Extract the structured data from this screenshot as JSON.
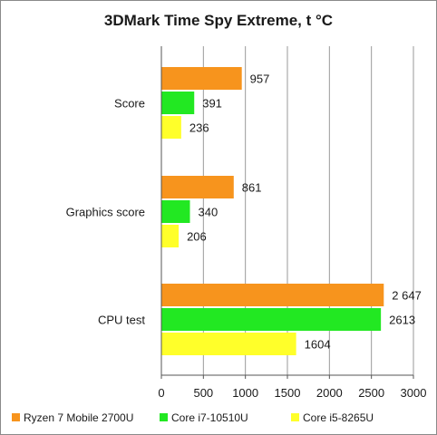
{
  "chart_data": {
    "type": "bar",
    "orientation": "horizontal",
    "title": "3DMark Time Spy Extreme, t °C",
    "categories": [
      "Score",
      "Graphics score",
      "CPU test"
    ],
    "series": [
      {
        "name": "Ryzen 7 Mobile 2700U",
        "color": "#f7941d",
        "values": [
          957,
          861,
          2647
        ],
        "labels": [
          "957",
          "861",
          "2 647"
        ]
      },
      {
        "name": "Core i7-10510U",
        "color": "#22e822",
        "values": [
          391,
          340,
          2613
        ],
        "labels": [
          "391",
          "340",
          "2613"
        ]
      },
      {
        "name": "Core i5-8265U",
        "color": "#ffff2a",
        "values": [
          236,
          206,
          1604
        ],
        "labels": [
          "236",
          "206",
          "1604"
        ]
      }
    ],
    "xlim": [
      0,
      3000
    ],
    "xticks": [
      0,
      500,
      1000,
      1500,
      2000,
      2500,
      3000
    ],
    "grid": true,
    "legend_position": "bottom"
  }
}
